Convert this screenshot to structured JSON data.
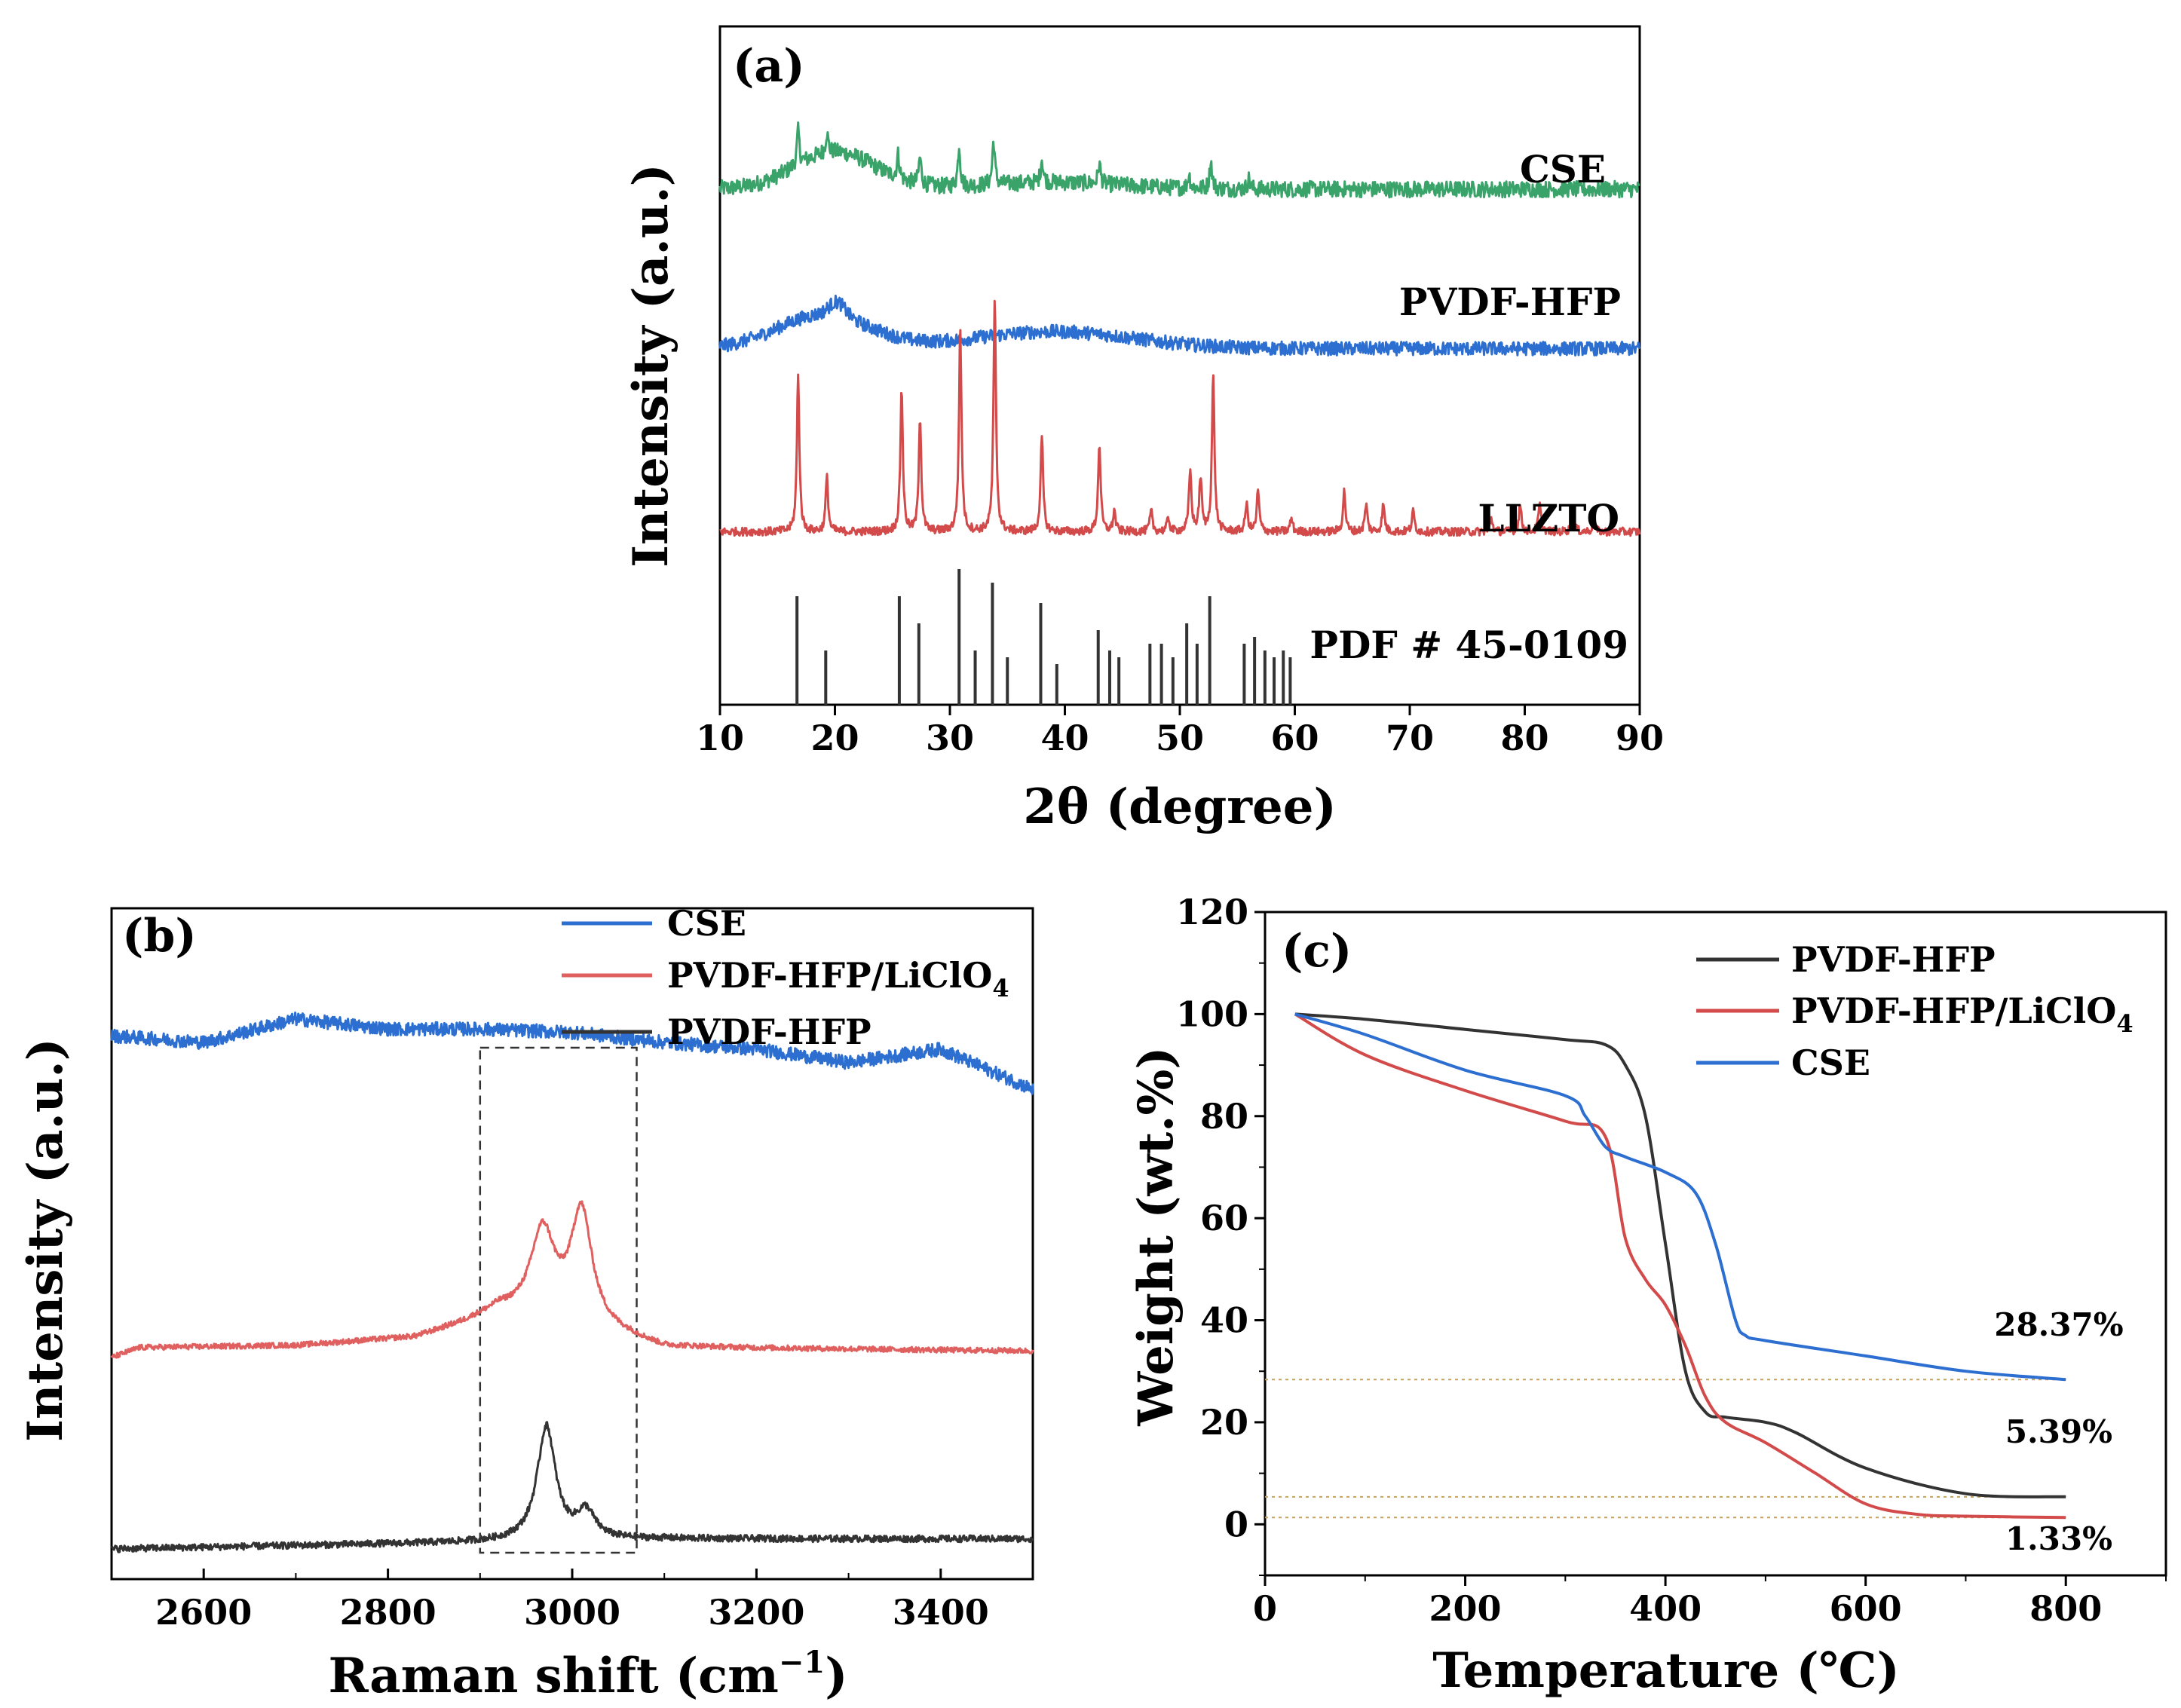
{
  "figure": {
    "panel_labels": [
      "(a)",
      "(b)",
      "(c)"
    ]
  },
  "chart_data": [
    {
      "id": "a",
      "type": "line",
      "panel_label": "(a)",
      "xlabel": "2θ (degree)",
      "ylabel": "Intensity (a.u.)",
      "xlim": [
        10,
        90
      ],
      "xticks": [
        "10",
        "20",
        "30",
        "40",
        "50",
        "60",
        "70",
        "80",
        "90"
      ],
      "yticks_shown": false,
      "series": [
        {
          "name": "CSE",
          "color": "#3aa36a",
          "label": "CSE",
          "baseline": 0.76,
          "noise": 0.012,
          "bumps": [
            [
              20,
              3.5,
              0.055
            ],
            [
              39,
              6,
              0.01
            ]
          ],
          "peaks": [
            [
              16.8,
              0.05
            ],
            [
              19.3,
              0.03
            ],
            [
              25.5,
              0.035
            ],
            [
              27.4,
              0.04
            ],
            [
              30.8,
              0.06
            ],
            [
              33.8,
              0.065
            ],
            [
              38.0,
              0.035
            ],
            [
              43.0,
              0.03
            ],
            [
              50.8,
              0.02
            ],
            [
              52.7,
              0.04
            ],
            [
              56.0,
              0.015
            ]
          ]
        },
        {
          "name": "PVDF-HFP",
          "color": "#2c6fd1",
          "label": "PVDF-HFP",
          "baseline": 0.525,
          "noise": 0.01,
          "bumps": [
            [
              19,
              4,
              0.05
            ],
            [
              20.2,
              0.7,
              0.02
            ],
            [
              39,
              7,
              0.025
            ]
          ],
          "peaks": []
        },
        {
          "name": "LLZTO",
          "color": "#d24a4a",
          "label": "LLZTO",
          "baseline": 0.255,
          "noise": 0.006,
          "bumps": [],
          "peaks": [
            [
              16.8,
              0.23
            ],
            [
              19.3,
              0.08
            ],
            [
              25.8,
              0.21
            ],
            [
              27.4,
              0.17
            ],
            [
              30.9,
              0.3
            ],
            [
              33.9,
              0.34
            ],
            [
              38.0,
              0.14
            ],
            [
              43.0,
              0.13
            ],
            [
              44.3,
              0.03
            ],
            [
              47.5,
              0.03
            ],
            [
              49.0,
              0.02
            ],
            [
              50.9,
              0.09
            ],
            [
              51.8,
              0.08
            ],
            [
              52.9,
              0.23
            ],
            [
              55.8,
              0.04
            ],
            [
              56.8,
              0.06
            ],
            [
              59.7,
              0.02
            ],
            [
              64.3,
              0.06
            ],
            [
              66.2,
              0.04
            ],
            [
              67.7,
              0.04
            ],
            [
              70.3,
              0.03
            ],
            [
              77.1,
              0.02
            ],
            [
              79.6,
              0.04
            ],
            [
              81.3,
              0.04
            ],
            [
              84.2,
              0.03
            ],
            [
              86.0,
              0.015
            ]
          ]
        },
        {
          "name": "PDF # 45-0109",
          "color": "#333333",
          "label": "PDF # 45-0109",
          "type": "stick",
          "sticks": [
            [
              16.7,
              0.16
            ],
            [
              19.2,
              0.08
            ],
            [
              25.6,
              0.16
            ],
            [
              27.3,
              0.12
            ],
            [
              30.8,
              0.2
            ],
            [
              32.2,
              0.08
            ],
            [
              33.7,
              0.18
            ],
            [
              35.0,
              0.07
            ],
            [
              37.9,
              0.15
            ],
            [
              39.3,
              0.06
            ],
            [
              42.9,
              0.11
            ],
            [
              43.9,
              0.08
            ],
            [
              44.7,
              0.07
            ],
            [
              47.4,
              0.09
            ],
            [
              48.4,
              0.09
            ],
            [
              49.4,
              0.07
            ],
            [
              50.6,
              0.12
            ],
            [
              51.5,
              0.09
            ],
            [
              52.6,
              0.16
            ],
            [
              55.6,
              0.09
            ],
            [
              56.5,
              0.1
            ],
            [
              57.4,
              0.08
            ],
            [
              58.2,
              0.07
            ],
            [
              59.0,
              0.08
            ],
            [
              59.6,
              0.07
            ]
          ]
        }
      ]
    },
    {
      "id": "b",
      "type": "line",
      "panel_label": "(b)",
      "xlabel": "Raman shift (cm",
      "xlabel_sup": "−1",
      "xlabel_end": ")",
      "ylabel": "Intensity (a.u.)",
      "xlim": [
        2500,
        3500
      ],
      "xticks": [
        "2600",
        "2800",
        "3000",
        "3200",
        "3400"
      ],
      "yticks_shown": false,
      "highlight_box": [
        2900,
        3070
      ],
      "legend": [
        {
          "label": "CSE",
          "color": "#2c6fd1"
        },
        {
          "label": "PVDF-HFP/LiClO",
          "sub": "4",
          "color": "#e06060"
        },
        {
          "label": "PVDF-HFP",
          "color": "#333333"
        }
      ],
      "series": [
        {
          "name": "CSE",
          "color": "#2c6fd1",
          "noise": 0.01,
          "curve": [
            [
              2500,
              0.81
            ],
            [
              2600,
              0.8
            ],
            [
              2700,
              0.835
            ],
            [
              2800,
              0.82
            ],
            [
              2900,
              0.82
            ],
            [
              3000,
              0.815
            ],
            [
              3100,
              0.8
            ],
            [
              3200,
              0.79
            ],
            [
              3300,
              0.77
            ],
            [
              3400,
              0.79
            ],
            [
              3450,
              0.76
            ],
            [
              3500,
              0.73
            ]
          ]
        },
        {
          "name": "PVDF-HFP/LiClO4",
          "color": "#e06060",
          "noise": 0.004,
          "curve": [
            [
              2500,
              0.33
            ],
            [
              2530,
              0.345
            ],
            [
              2700,
              0.348
            ],
            [
              2830,
              0.36
            ],
            [
              2880,
              0.38
            ],
            [
              2920,
              0.4
            ],
            [
              3060,
              0.36
            ],
            [
              3100,
              0.345
            ],
            [
              3500,
              0.34
            ]
          ],
          "peaks": [
            [
              2968,
              16,
              0.13
            ],
            [
              3010,
              14,
              0.17
            ]
          ]
        },
        {
          "name": "PVDF-HFP",
          "color": "#333333",
          "noise": 0.005,
          "curve": [
            [
              2500,
              0.045
            ],
            [
              2900,
              0.055
            ],
            [
              3100,
              0.06
            ],
            [
              3500,
              0.06
            ]
          ],
          "peaks": [
            [
              2972,
              12,
              0.17
            ],
            [
              3015,
              12,
              0.04
            ]
          ]
        }
      ]
    },
    {
      "id": "c",
      "type": "line",
      "panel_label": "(c)",
      "xlabel": "Temperature (℃)",
      "ylabel": "Weight (wt.%)",
      "xlim": [
        0,
        900
      ],
      "ylim": [
        -10,
        120
      ],
      "xticks": [
        0,
        200,
        400,
        600,
        800
      ],
      "yticks": [
        0,
        20,
        40,
        60,
        80,
        100,
        120
      ],
      "legend": [
        {
          "label": "PVDF-HFP",
          "color": "#333333"
        },
        {
          "label": "PVDF-HFP/LiClO",
          "sub": "4",
          "color": "#d24a4a"
        },
        {
          "label": "CSE",
          "color": "#2c6fd1"
        }
      ],
      "annotations": [
        {
          "text": "28.37%",
          "x": 790,
          "y": 37
        },
        {
          "text": "5.39%",
          "x": 790,
          "y": 16
        },
        {
          "text": "1.33%",
          "x": 790,
          "y": -5
        }
      ],
      "ref_lines": [
        28.37,
        5.39,
        1.33
      ],
      "series": [
        {
          "name": "PVDF-HFP",
          "color": "#333333",
          "x": [
            30,
            100,
            200,
            300,
            340,
            360,
            380,
            400,
            420,
            440,
            460,
            500,
            530,
            600,
            700,
            800
          ],
          "y": [
            100,
            99,
            97,
            95,
            94,
            90,
            80,
            55,
            30,
            22,
            21,
            20,
            18,
            11,
            6,
            5.39
          ]
        },
        {
          "name": "PVDF-HFP/LiClO4",
          "color": "#d24a4a",
          "x": [
            30,
            100,
            200,
            300,
            340,
            360,
            380,
            400,
            420,
            440,
            460,
            500,
            550,
            600,
            650,
            700,
            800
          ],
          "y": [
            100,
            92,
            85,
            79,
            76,
            56,
            48,
            43,
            35,
            25,
            20,
            16,
            10,
            4,
            2,
            1.6,
            1.33
          ]
        },
        {
          "name": "CSE",
          "color": "#2c6fd1",
          "x": [
            30,
            100,
            200,
            300,
            320,
            340,
            360,
            400,
            430,
            450,
            470,
            480,
            500,
            600,
            700,
            800
          ],
          "y": [
            100,
            96,
            89,
            84,
            80,
            74,
            72,
            69,
            65,
            55,
            40,
            37,
            36,
            33,
            30,
            28.37
          ]
        }
      ]
    }
  ]
}
